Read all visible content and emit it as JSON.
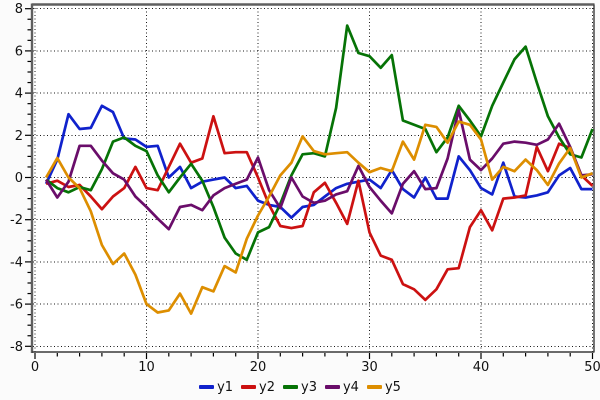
{
  "chart_data": {
    "type": "line",
    "title": "",
    "xlabel": "",
    "ylabel": "",
    "xlim": [
      0,
      50
    ],
    "ylim": [
      -8,
      8
    ],
    "grid": {
      "shown": true,
      "style": "dotted",
      "x_every": 10,
      "y_every": 2
    },
    "x_major_ticks": [
      0,
      10,
      20,
      30,
      40,
      50
    ],
    "x_minor_step": 2,
    "y_major_ticks": [
      8,
      6,
      4,
      2,
      0,
      -2,
      -4,
      -6,
      -8
    ],
    "y_minor_step": 0.5,
    "legend": {
      "position": "bottom-center",
      "entries": [
        "y1",
        "y2",
        "y3",
        "y4",
        "y5"
      ]
    },
    "x": [
      1,
      2,
      3,
      4,
      5,
      6,
      7,
      8,
      9,
      10,
      11,
      12,
      13,
      14,
      15,
      16,
      17,
      18,
      19,
      20,
      21,
      22,
      23,
      24,
      25,
      26,
      27,
      28,
      29,
      30,
      31,
      32,
      33,
      34,
      35,
      36,
      37,
      38,
      39,
      40,
      41,
      42,
      43,
      44,
      45,
      46,
      47,
      48,
      49,
      50
    ],
    "series": [
      {
        "name": "y1",
        "color": "#1022cc",
        "values": [
          -0.3,
          0.85,
          3.0,
          2.3,
          2.35,
          3.4,
          3.1,
          1.85,
          1.8,
          1.45,
          1.5,
          0.0,
          0.5,
          -0.5,
          -0.2,
          -0.1,
          0.0,
          -0.5,
          -0.4,
          -1.1,
          -1.3,
          -1.4,
          -1.9,
          -1.4,
          -1.3,
          -0.9,
          -0.5,
          -0.3,
          -0.2,
          -0.1,
          -0.5,
          0.35,
          -0.55,
          -0.95,
          0.0,
          -1.0,
          -1.0,
          1.0,
          0.35,
          -0.5,
          -0.8,
          0.7,
          -0.9,
          -0.95,
          -0.85,
          -0.7,
          0.1,
          0.45,
          -0.55,
          -0.55
        ]
      },
      {
        "name": "y2",
        "color": "#cc1111",
        "values": [
          -0.3,
          -0.15,
          -0.45,
          -0.35,
          -0.9,
          -1.5,
          -0.9,
          -0.5,
          0.5,
          -0.5,
          -0.6,
          0.5,
          1.6,
          0.7,
          0.9,
          2.9,
          1.15,
          1.2,
          1.2,
          0.0,
          -1.3,
          -2.3,
          -2.4,
          -2.3,
          -0.7,
          -0.25,
          -1.2,
          -2.2,
          -0.15,
          -2.6,
          -3.7,
          -3.9,
          -5.05,
          -5.3,
          -5.8,
          -5.3,
          -4.35,
          -4.3,
          -2.35,
          -1.55,
          -2.5,
          -1.0,
          -0.95,
          -0.85,
          1.45,
          0.3,
          1.6,
          1.4,
          0.1,
          -0.4
        ]
      },
      {
        "name": "y3",
        "color": "#067306",
        "values": [
          -0.1,
          -0.5,
          -0.7,
          -0.45,
          -0.6,
          0.4,
          1.7,
          1.9,
          1.5,
          1.25,
          0.1,
          -0.7,
          0.0,
          0.65,
          -0.15,
          -1.4,
          -2.85,
          -3.6,
          -3.9,
          -2.6,
          -2.35,
          -1.25,
          0.1,
          1.1,
          1.15,
          1.0,
          3.3,
          7.2,
          5.9,
          5.75,
          5.2,
          5.8,
          2.7,
          2.5,
          2.3,
          1.2,
          1.9,
          3.4,
          2.7,
          1.95,
          3.4,
          4.5,
          5.6,
          6.2,
          4.5,
          2.9,
          1.9,
          1.1,
          0.95,
          2.3
        ]
      },
      {
        "name": "y4",
        "color": "#6a0d6a",
        "values": [
          -0.1,
          -0.95,
          -0.2,
          1.5,
          1.5,
          0.8,
          0.2,
          -0.1,
          -0.9,
          -1.4,
          -1.95,
          -2.45,
          -1.4,
          -1.3,
          -1.55,
          -0.85,
          -0.5,
          -0.3,
          -0.1,
          0.95,
          -0.6,
          -1.45,
          0.0,
          -0.9,
          -1.2,
          -1.1,
          -0.8,
          -0.65,
          0.55,
          -0.45,
          -1.1,
          -1.7,
          -0.3,
          0.3,
          -0.55,
          -0.5,
          0.9,
          3.2,
          0.85,
          0.35,
          0.9,
          1.6,
          1.7,
          1.65,
          1.55,
          1.8,
          2.55,
          1.45,
          0.1,
          0.15
        ]
      },
      {
        "name": "y5",
        "color": "#dd8e00",
        "values": [
          0.0,
          0.92,
          0.0,
          -0.5,
          -1.6,
          -3.2,
          -4.1,
          -3.6,
          -4.6,
          -6.0,
          -6.4,
          -6.3,
          -5.5,
          -6.45,
          -5.2,
          -5.4,
          -4.2,
          -4.5,
          -2.9,
          -1.8,
          -0.9,
          0.1,
          0.7,
          1.95,
          1.25,
          1.1,
          1.15,
          1.2,
          0.7,
          0.25,
          0.45,
          0.3,
          1.7,
          0.85,
          2.5,
          2.4,
          1.65,
          2.65,
          2.5,
          1.8,
          -0.1,
          0.5,
          0.3,
          0.85,
          0.35,
          -0.35,
          0.67,
          1.4,
          0.0,
          0.2
        ]
      }
    ]
  },
  "style": {
    "plot_bg": "#ffffff",
    "outer_bg": "#fbfbfb",
    "grid_color": "#1a1a1a",
    "frame_topleft_color": "#5f5f5f",
    "frame_bottomright_color": "#3a3a3a",
    "tick_color": "#000000",
    "label_color": "#111111"
  }
}
